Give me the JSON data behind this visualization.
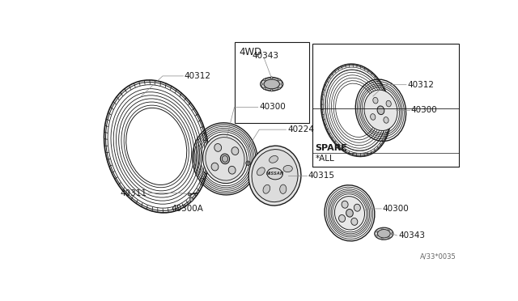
{
  "bg_color": "#ffffff",
  "line_color": "#1a1a1a",
  "gray_color": "#888888",
  "parts": {
    "main_tire_label": "40312",
    "main_wheel_label": "40300",
    "hub_cap_label": "40315",
    "hub_ring_label": "40224",
    "valve_label": "40311",
    "wheel_sub_label": "40300A",
    "top_4wd_label": "4WD",
    "top_cap_label": "40343",
    "right_tire_label": "40312",
    "right_wheel_label": "40300",
    "spare_label": "SPARE",
    "spare_sub_label": "*ALL",
    "spare_wheel_label": "40300",
    "spare_cap_label": "40343",
    "diagram_num": "A/33*0035"
  }
}
